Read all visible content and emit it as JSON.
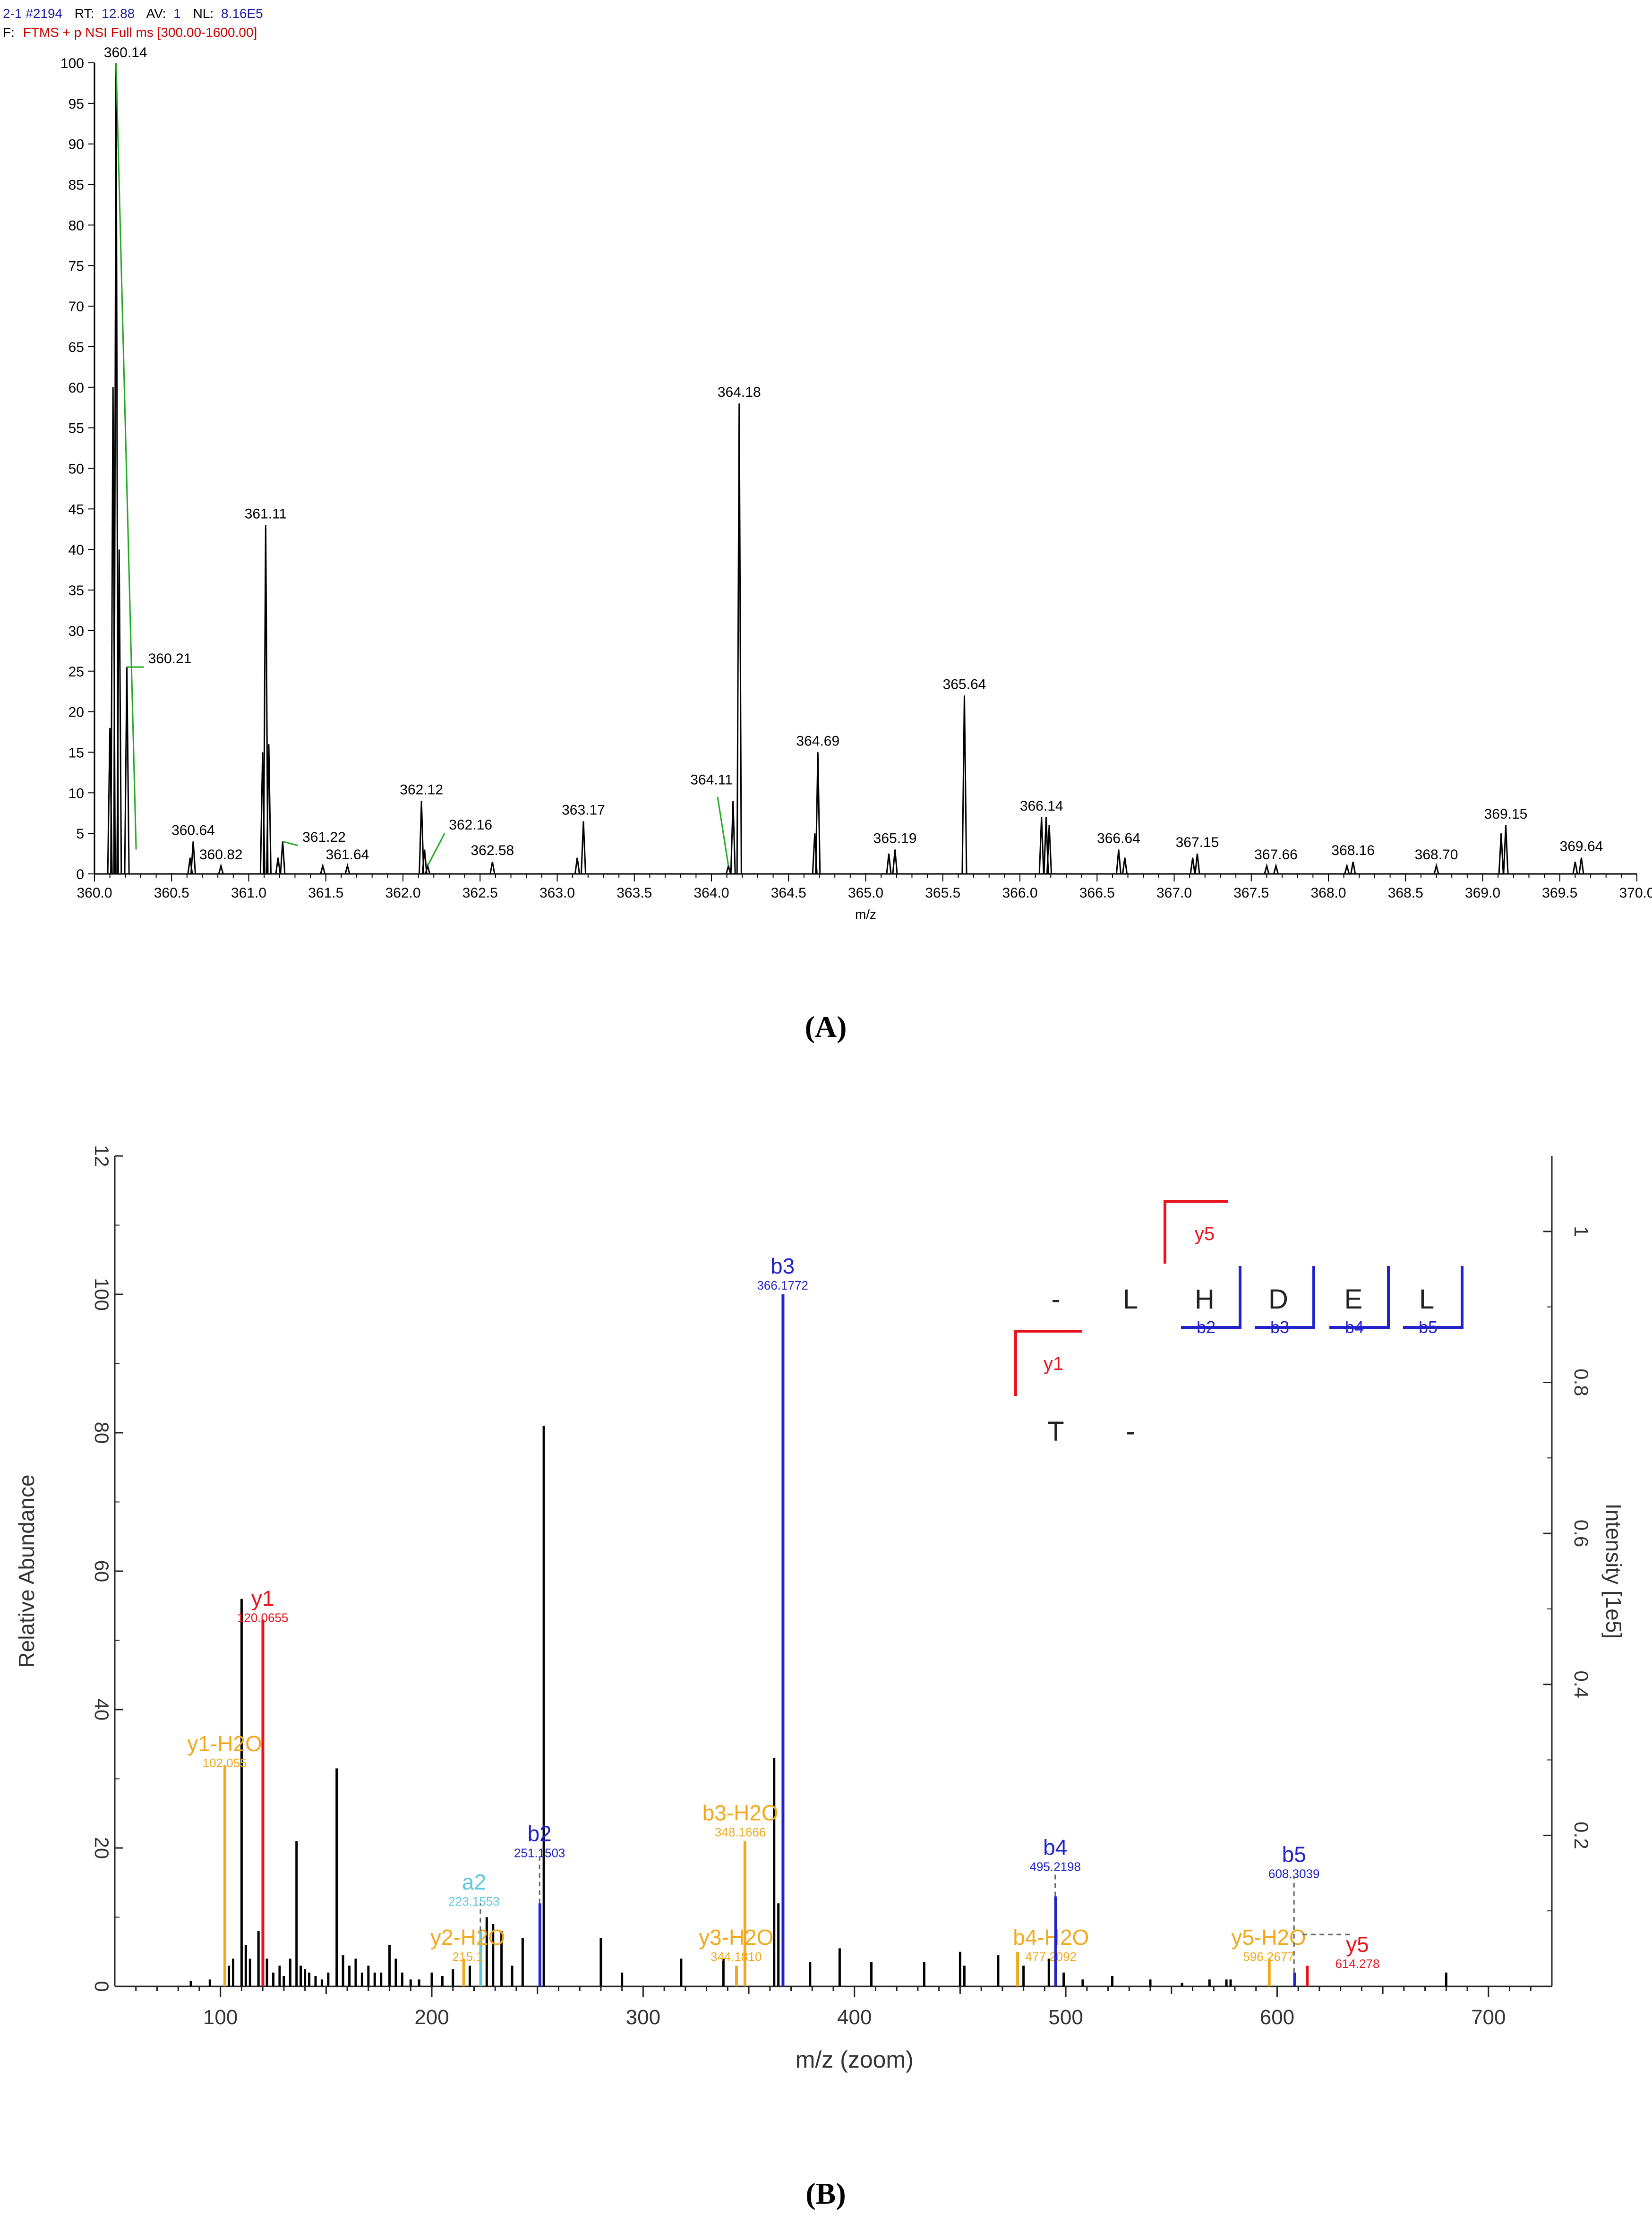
{
  "panel_a": {
    "header_line1": {
      "scan": "2-1 #2194",
      "rt_label": "RT:",
      "rt_value": "12.88",
      "av_label": "AV:",
      "av_value": "1",
      "nl_label": "NL:",
      "nl_value": "8.16E5"
    },
    "header_line2": {
      "prefix": "F:",
      "filter": "FTMS + p NSI Full ms [300.00-1600.00]"
    },
    "caption": "(A)"
  },
  "panel_b": {
    "caption": "(B)",
    "sequence": {
      "row1": [
        "-",
        "L",
        "H",
        "D",
        "E",
        "L"
      ],
      "row2": [
        "T",
        "-"
      ]
    },
    "seq_ion_labels": {
      "y5": "y5",
      "y1": "y1",
      "b2": "b2",
      "b3": "b3",
      "b4": "b4",
      "b5": "b5"
    }
  },
  "colors": {
    "black": "#000000",
    "blue": "#2222cc",
    "red": "#e8141e",
    "orange": "#f2a81c",
    "cyan": "#5fc8e0",
    "green": "#22aa22",
    "header_blue": "#1f1f9f",
    "header_red": "#cc0000"
  },
  "chart_data": [
    {
      "type": "line",
      "title": "2-1 #2194 RT: 12.88 AV: 1 NL: 8.16E5",
      "xlabel": "m/z",
      "ylabel": "",
      "xlim": [
        360.0,
        370.0
      ],
      "ylim": [
        0,
        100
      ],
      "x_ticks": [
        "360.0",
        "360.5",
        "361.0",
        "361.5",
        "362.0",
        "362.5",
        "363.0",
        "363.5",
        "364.0",
        "364.5",
        "365.0",
        "365.5",
        "366.0",
        "366.5",
        "367.0",
        "367.5",
        "368.0",
        "368.5",
        "369.0",
        "369.5",
        "370.0"
      ],
      "y_ticks": [
        "0",
        "5",
        "10",
        "15",
        "20",
        "25",
        "30",
        "35",
        "40",
        "45",
        "50",
        "55",
        "60",
        "65",
        "70",
        "75",
        "80",
        "85",
        "90",
        "95",
        "100"
      ],
      "peaks": [
        {
          "mz": 360.14,
          "intensity": 100,
          "label": "360.14"
        },
        {
          "mz": 360.21,
          "intensity": 25.5,
          "label": "360.21"
        },
        {
          "mz": 360.64,
          "intensity": 4,
          "label": "360.64"
        },
        {
          "mz": 360.82,
          "intensity": 1,
          "label": "360.82"
        },
        {
          "mz": 361.11,
          "intensity": 43,
          "label": "361.11"
        },
        {
          "mz": 361.22,
          "intensity": 4,
          "label": "361.22"
        },
        {
          "mz": 361.64,
          "intensity": 1,
          "label": "361.64"
        },
        {
          "mz": 362.12,
          "intensity": 9,
          "label": "362.12"
        },
        {
          "mz": 362.16,
          "intensity": 1,
          "label": "362.16"
        },
        {
          "mz": 362.58,
          "intensity": 1.5,
          "label": "362.58"
        },
        {
          "mz": 363.17,
          "intensity": 6.5,
          "label": "363.17"
        },
        {
          "mz": 364.11,
          "intensity": 1,
          "label": "364.11"
        },
        {
          "mz": 364.18,
          "intensity": 58,
          "label": "364.18"
        },
        {
          "mz": 364.69,
          "intensity": 15,
          "label": "364.69"
        },
        {
          "mz": 365.19,
          "intensity": 3,
          "label": "365.19"
        },
        {
          "mz": 365.64,
          "intensity": 22,
          "label": "365.64"
        },
        {
          "mz": 366.14,
          "intensity": 7,
          "label": "366.14"
        },
        {
          "mz": 366.64,
          "intensity": 3,
          "label": "366.64"
        },
        {
          "mz": 367.15,
          "intensity": 2.5,
          "label": "367.15"
        },
        {
          "mz": 367.66,
          "intensity": 1,
          "label": "367.66"
        },
        {
          "mz": 368.16,
          "intensity": 1.5,
          "label": "368.16"
        },
        {
          "mz": 368.7,
          "intensity": 1,
          "label": "368.70"
        },
        {
          "mz": 369.15,
          "intensity": 6,
          "label": "369.15"
        },
        {
          "mz": 369.64,
          "intensity": 2,
          "label": "369.64"
        }
      ],
      "minor_peaks": [
        {
          "mz": 360.1,
          "intensity": 18
        },
        {
          "mz": 360.12,
          "intensity": 60
        },
        {
          "mz": 360.16,
          "intensity": 40
        },
        {
          "mz": 360.62,
          "intensity": 2
        },
        {
          "mz": 361.09,
          "intensity": 15
        },
        {
          "mz": 361.13,
          "intensity": 16
        },
        {
          "mz": 361.19,
          "intensity": 2
        },
        {
          "mz": 361.48,
          "intensity": 1
        },
        {
          "mz": 362.14,
          "intensity": 3
        },
        {
          "mz": 363.13,
          "intensity": 2
        },
        {
          "mz": 364.14,
          "intensity": 9
        },
        {
          "mz": 364.67,
          "intensity": 5
        },
        {
          "mz": 365.15,
          "intensity": 2.5
        },
        {
          "mz": 366.17,
          "intensity": 7
        },
        {
          "mz": 366.19,
          "intensity": 6
        },
        {
          "mz": 366.68,
          "intensity": 2
        },
        {
          "mz": 367.12,
          "intensity": 2
        },
        {
          "mz": 367.6,
          "intensity": 1
        },
        {
          "mz": 368.12,
          "intensity": 1
        },
        {
          "mz": 369.12,
          "intensity": 5
        },
        {
          "mz": 369.6,
          "intensity": 1.5
        }
      ]
    },
    {
      "type": "bar",
      "title": "",
      "xlabel": "m/z (zoom)",
      "ylabel": "Relative Abundance",
      "y2label": "Intensity [1e5]",
      "xlim": [
        50,
        730
      ],
      "ylim": [
        0,
        120
      ],
      "y2lim": [
        0,
        1.1
      ],
      "x_ticks": [
        "100",
        "200",
        "300",
        "400",
        "500",
        "600",
        "700"
      ],
      "y_ticks": [
        "0",
        "20",
        "40",
        "60",
        "80",
        "100"
      ],
      "y_ticks_top": "12",
      "y2_ticks": [
        "0.2",
        "0.4",
        "0.6",
        "0.8",
        "1"
      ],
      "annotated_ions": [
        {
          "name": "y1-H2O",
          "mz_label": "102.055",
          "mz": 102.06,
          "intensity": 32,
          "color": "orange"
        },
        {
          "name": "y1",
          "mz_label": "120.0655",
          "mz": 120.07,
          "intensity": 53,
          "color": "red"
        },
        {
          "name": "a2",
          "mz_label": "223.1553",
          "mz": 223.16,
          "intensity": 8,
          "color": "cyan"
        },
        {
          "name": "y2-H2O",
          "mz_label": "215.1",
          "mz": 215.1,
          "intensity": 4,
          "color": "orange"
        },
        {
          "name": "b2",
          "mz_label": "251.1503",
          "mz": 251.15,
          "intensity": 12,
          "color": "blue"
        },
        {
          "name": "b3-H2O",
          "mz_label": "348.1666",
          "mz": 348.17,
          "intensity": 21,
          "color": "orange"
        },
        {
          "name": "y3-H2O",
          "mz_label": "344.1810",
          "mz": 344.18,
          "intensity": 3,
          "color": "orange"
        },
        {
          "name": "b3",
          "mz_label": "366.1772",
          "mz": 366.18,
          "intensity": 100,
          "color": "blue"
        },
        {
          "name": "b4-H2O",
          "mz_label": "477.2092",
          "mz": 477.21,
          "intensity": 5,
          "color": "orange"
        },
        {
          "name": "b4",
          "mz_label": "495.2198",
          "mz": 495.22,
          "intensity": 13,
          "color": "blue"
        },
        {
          "name": "y5-H2O",
          "mz_label": "596.2677",
          "mz": 596.27,
          "intensity": 4,
          "color": "orange"
        },
        {
          "name": "b5",
          "mz_label": "608.3039",
          "mz": 608.3,
          "intensity": 2,
          "color": "blue"
        },
        {
          "name": "y5",
          "mz_label": "614.278",
          "mz": 614.28,
          "intensity": 3,
          "color": "red"
        }
      ],
      "unannotated_peaks": [
        {
          "mz": 86,
          "i": 0.8
        },
        {
          "mz": 95,
          "i": 1
        },
        {
          "mz": 104,
          "i": 3
        },
        {
          "mz": 106,
          "i": 4
        },
        {
          "mz": 110,
          "i": 56
        },
        {
          "mz": 112,
          "i": 6
        },
        {
          "mz": 114,
          "i": 4
        },
        {
          "mz": 118,
          "i": 8
        },
        {
          "mz": 122,
          "i": 4
        },
        {
          "mz": 125,
          "i": 2
        },
        {
          "mz": 128,
          "i": 3
        },
        {
          "mz": 130,
          "i": 1.5
        },
        {
          "mz": 133,
          "i": 4
        },
        {
          "mz": 136,
          "i": 21
        },
        {
          "mz": 138,
          "i": 3
        },
        {
          "mz": 140,
          "i": 2.5
        },
        {
          "mz": 142,
          "i": 2
        },
        {
          "mz": 145,
          "i": 1.5
        },
        {
          "mz": 148,
          "i": 1
        },
        {
          "mz": 151,
          "i": 2
        },
        {
          "mz": 155,
          "i": 31.5
        },
        {
          "mz": 158,
          "i": 4.5
        },
        {
          "mz": 161,
          "i": 3
        },
        {
          "mz": 164,
          "i": 4
        },
        {
          "mz": 167,
          "i": 2
        },
        {
          "mz": 170,
          "i": 3
        },
        {
          "mz": 173,
          "i": 2
        },
        {
          "mz": 176,
          "i": 2
        },
        {
          "mz": 180,
          "i": 6
        },
        {
          "mz": 183,
          "i": 4
        },
        {
          "mz": 186,
          "i": 2
        },
        {
          "mz": 190,
          "i": 1
        },
        {
          "mz": 194,
          "i": 1
        },
        {
          "mz": 200,
          "i": 2
        },
        {
          "mz": 205,
          "i": 1.5
        },
        {
          "mz": 210,
          "i": 2.5
        },
        {
          "mz": 218,
          "i": 3
        },
        {
          "mz": 226,
          "i": 10
        },
        {
          "mz": 229,
          "i": 9
        },
        {
          "mz": 233,
          "i": 8
        },
        {
          "mz": 238,
          "i": 3
        },
        {
          "mz": 243,
          "i": 7
        },
        {
          "mz": 253,
          "i": 81
        },
        {
          "mz": 280,
          "i": 7
        },
        {
          "mz": 290,
          "i": 2
        },
        {
          "mz": 318,
          "i": 4
        },
        {
          "mz": 338,
          "i": 4
        },
        {
          "mz": 362,
          "i": 33
        },
        {
          "mz": 364,
          "i": 12
        },
        {
          "mz": 379,
          "i": 3.5
        },
        {
          "mz": 393,
          "i": 5.5
        },
        {
          "mz": 408,
          "i": 3.5
        },
        {
          "mz": 433,
          "i": 3.5
        },
        {
          "mz": 450,
          "i": 5
        },
        {
          "mz": 452,
          "i": 3
        },
        {
          "mz": 468,
          "i": 4.5
        },
        {
          "mz": 480,
          "i": 3
        },
        {
          "mz": 492,
          "i": 4
        },
        {
          "mz": 499,
          "i": 2
        },
        {
          "mz": 508,
          "i": 1
        },
        {
          "mz": 522,
          "i": 1.5
        },
        {
          "mz": 540,
          "i": 1
        },
        {
          "mz": 555,
          "i": 0.5
        },
        {
          "mz": 568,
          "i": 1
        },
        {
          "mz": 576,
          "i": 1
        },
        {
          "mz": 578,
          "i": 1
        },
        {
          "mz": 680,
          "i": 2
        }
      ]
    }
  ]
}
